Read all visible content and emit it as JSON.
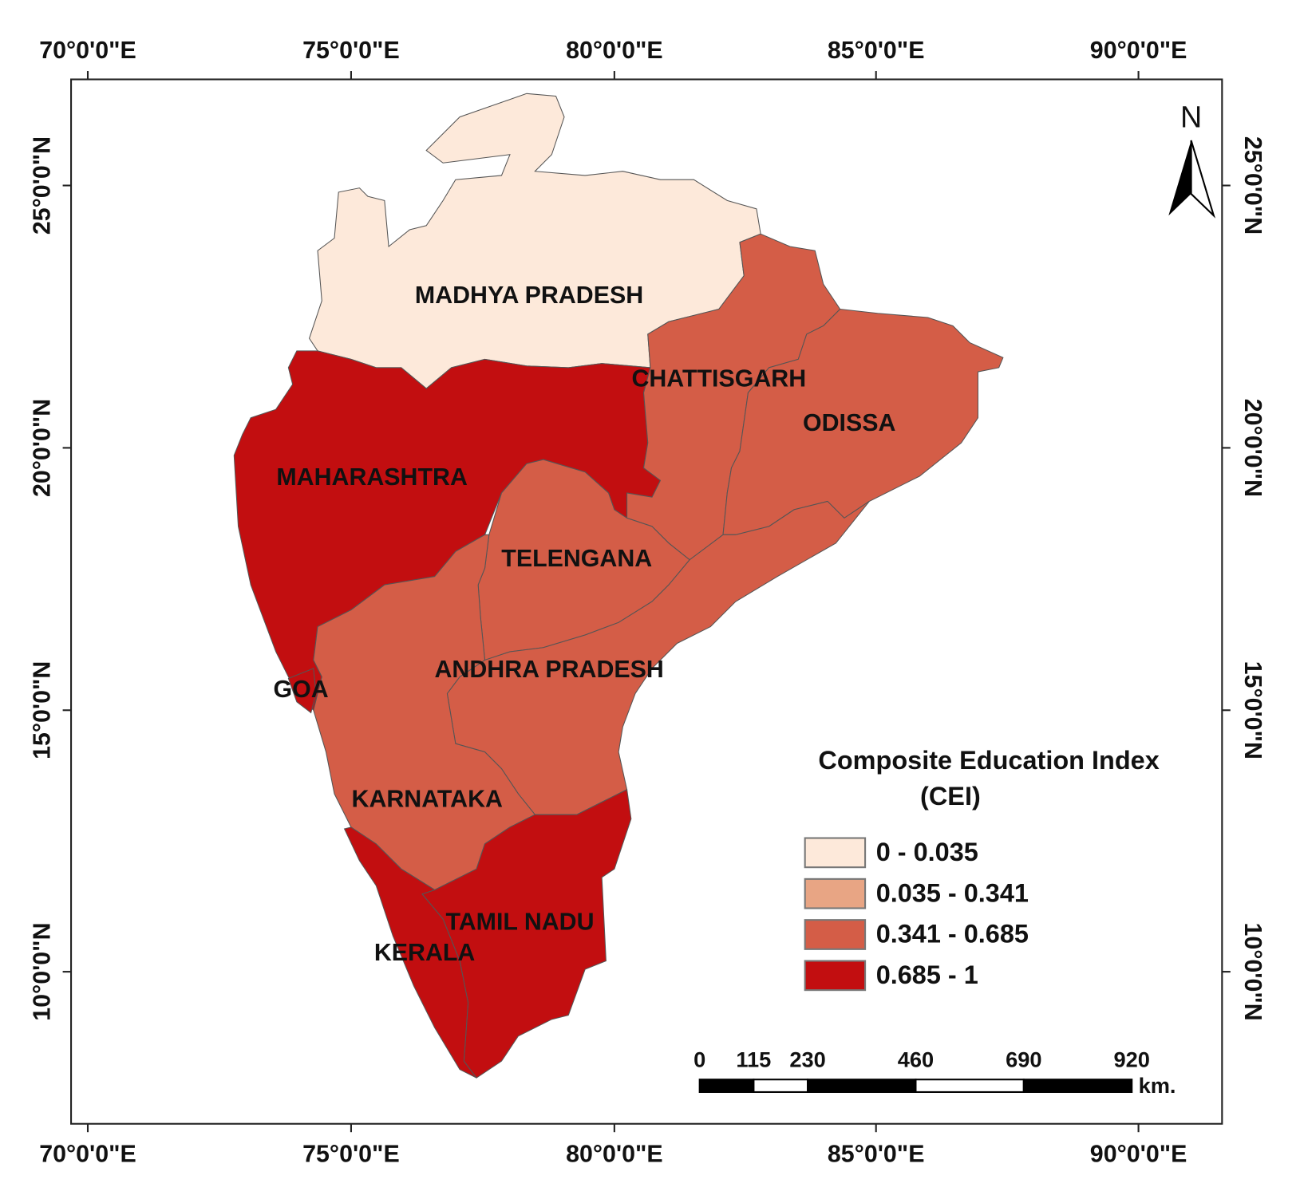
{
  "map": {
    "x_labels": [
      "70°0'0\"E",
      "75°0'0\"E",
      "80°0'0\"E",
      "85°0'0\"E",
      "90°0'0\"E"
    ],
    "y_labels": [
      "25°0'0\"N",
      "20°0'0\"N",
      "15°0'0\"N",
      "10°0'0\"N"
    ],
    "regions": [
      {
        "name": "MADHYA PRADESH",
        "class": 0
      },
      {
        "name": "MAHARASHTRA",
        "class": 3
      },
      {
        "name": "CHATTISGARH",
        "class": 2
      },
      {
        "name": "ODISSA",
        "class": 2
      },
      {
        "name": "TELENGANA",
        "class": 2
      },
      {
        "name": "ANDHRA PRADESH",
        "class": 2
      },
      {
        "name": "KARNATAKA",
        "class": 2
      },
      {
        "name": "TAMIL NADU",
        "class": 3
      },
      {
        "name": "KERALA",
        "class": 3
      },
      {
        "name": "GOA",
        "class": 3
      }
    ],
    "legend": {
      "title": "Composite Education Index",
      "subtitle": "(CEI)",
      "classes": [
        {
          "label": "0 - 0.035",
          "color": "#fde9da"
        },
        {
          "label": "0.035 - 0.341",
          "color": "#e8a584"
        },
        {
          "label": "0.341 - 0.685",
          "color": "#d45d47"
        },
        {
          "label": "0.685 - 1",
          "color": "#c20e10"
        }
      ]
    },
    "scale_bar": {
      "ticks": [
        0,
        115,
        230,
        460,
        690,
        920
      ],
      "unit": "km."
    },
    "north": "N"
  }
}
